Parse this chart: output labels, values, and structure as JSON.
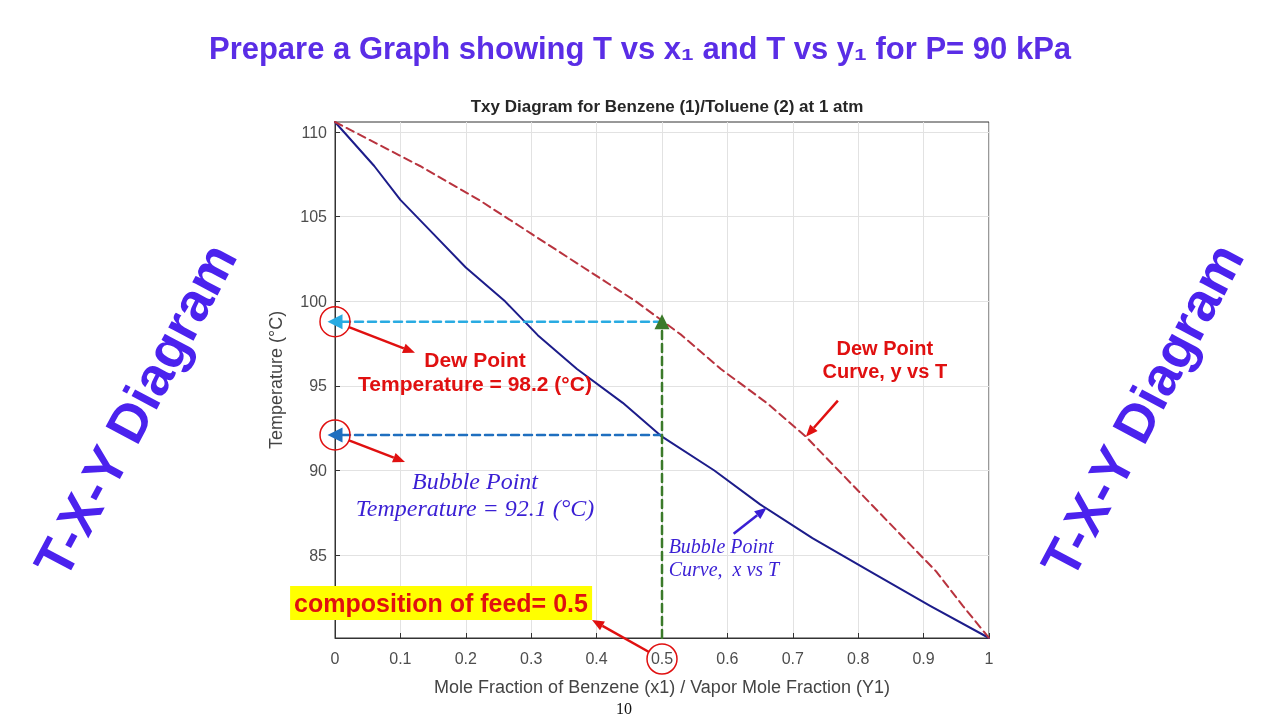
{
  "chart_data": {
    "type": "line",
    "title": "Prepare a Graph showing T vs x₁ and T vs y₁ for P= 90 kPa",
    "subtitle": "Txy Diagram for Benzene (1)/Toluene (2) at 1 atm",
    "xlabel": "Mole Fraction of Benzene (x1) / Vapor Mole Fraction (Y1)",
    "ylabel": "Temperature (°C)",
    "xlim": [
      0,
      1
    ],
    "ylim": [
      80.1,
      110.6
    ],
    "xticks": [
      0,
      0.1,
      0.2,
      0.3,
      0.4,
      0.5,
      0.6,
      0.7,
      0.8,
      0.9,
      1
    ],
    "yticks": [
      85,
      90,
      95,
      100,
      105,
      110
    ],
    "grid": true,
    "marker": "none",
    "series": [
      {
        "color": "#1c1c8a",
        "line_style": "solid",
        "x": [
          0,
          0.06,
          0.1,
          0.15,
          0.2,
          0.26,
          0.31,
          0.37,
          0.44,
          0.5,
          0.58,
          0.65,
          0.73,
          0.82,
          0.91,
          1
        ],
        "values": [
          110.6,
          108,
          106,
          104,
          102,
          100,
          98,
          96,
          94,
          92,
          90,
          88,
          86,
          84,
          82,
          80.1
        ]
      },
      {
        "color": "#b8333e",
        "line_style": "dashed",
        "x": [
          0,
          0.13,
          0.22,
          0.3,
          0.38,
          0.46,
          0.53,
          0.59,
          0.66,
          0.72,
          0.77,
          0.82,
          0.87,
          0.92,
          0.96,
          1
        ],
        "values": [
          110.6,
          108,
          106,
          104,
          102,
          100,
          98,
          96,
          94,
          92,
          90,
          88,
          86,
          84,
          82,
          80.1
        ]
      },
      {
        "color": "#29abe2",
        "line_style": "dashed",
        "marker": "triangle",
        "x": [
          0.5,
          0
        ],
        "values": [
          98.8,
          98.8
        ]
      },
      {
        "color": "#1f6fbf",
        "line_style": "dashed",
        "marker": "triangle",
        "x": [
          0.5,
          0
        ],
        "values": [
          92.1,
          92.1
        ]
      },
      {
        "color": "#3b7a2a",
        "line_style": "dashed",
        "marker": "triangle",
        "x": [
          0.5,
          0.5
        ],
        "values": [
          80.1,
          98.8
        ]
      }
    ],
    "annotations": [
      {
        "text": "Dew Point\nTemperature = 98.2 (°C)",
        "x": 0,
        "y": 98.8
      },
      {
        "text": "Bubble Point\nTemperature = 92.1 (°C)",
        "x": 0,
        "y": 92.1
      },
      {
        "text": "Dew Point\nCurve, y vs T",
        "x": 0.72,
        "y": 92.0
      },
      {
        "text": "Bubble Point\nCurve,  x vs T",
        "x": 0.66,
        "y": 87.8
      },
      "composition of feed= 0.5",
      "T-X-Y Diagram",
      "T-X-Y Diagram",
      "10"
    ]
  }
}
